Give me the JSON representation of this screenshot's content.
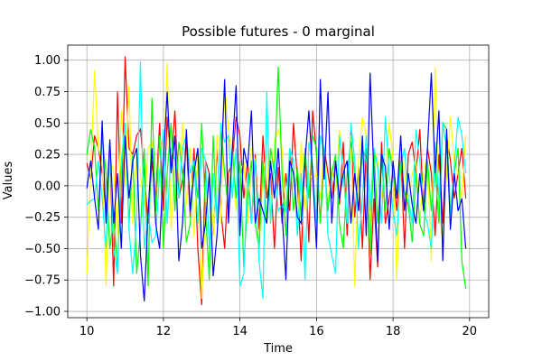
{
  "chart_data": {
    "type": "line",
    "title": "Possible futures - 0 marginal",
    "xlabel": "Time",
    "ylabel": "Values",
    "xlim": [
      9.5,
      20.5
    ],
    "ylim": [
      -1.05,
      1.12
    ],
    "grid": true,
    "x_ticks": [
      10,
      12,
      14,
      16,
      18,
      20
    ],
    "x_tick_labels": [
      "10",
      "12",
      "14",
      "16",
      "18",
      "20"
    ],
    "y_ticks": [
      -1.0,
      -0.75,
      -0.5,
      -0.25,
      0.0,
      0.25,
      0.5,
      0.75,
      1.0
    ],
    "y_tick_labels": [
      "−1.00",
      "−0.75",
      "−0.50",
      "−0.25",
      "0.00",
      "0.25",
      "0.50",
      "0.75",
      "1.00"
    ],
    "x_start": 10,
    "x_step": 0.1,
    "series": [
      {
        "color": "#ff0000",
        "values": [
          0.18,
          0.05,
          0.4,
          0.3,
          0.1,
          -0.2,
          0.35,
          -0.8,
          0.75,
          -0.3,
          1.03,
          0.3,
          0.25,
          0.4,
          0.45,
          0.1,
          -0.3,
          0.2,
          -0.1,
          0.5,
          -0.2,
          0.55,
          0.15,
          0.6,
          -0.1,
          0.05,
          0.35,
          -0.25,
          0.3,
          -0.5,
          -0.95,
          0.2,
          0.1,
          -0.4,
          0.3,
          -0.2,
          -0.5,
          0.1,
          0.2,
          0.55,
          0.4,
          -0.1,
          0.2,
          -0.3,
          0.25,
          -0.35,
          0.4,
          -0.1,
          0.1,
          -0.5,
          0.15,
          -0.3,
          0.1,
          -0.2,
          0.5,
          0.05,
          -0.6,
          0.3,
          -0.45,
          0.6,
          0.25,
          -0.3,
          0.3,
          0.1,
          -0.1,
          0.2,
          -0.15,
          0.35,
          -0.4,
          0.45,
          -0.25,
          0.15,
          -0.5,
          0.3,
          -0.75,
          -0.1,
          -0.65,
          0.35,
          -0.3,
          -0.1,
          0.1,
          -0.2,
          0.3,
          -0.5,
          0.25,
          0.35,
          0.1,
          0.45,
          -0.2,
          0.3,
          0.1,
          -0.4,
          0.25,
          -0.3,
          0.4,
          0.2,
          -0.1,
          0.1,
          0.3,
          -0.1
        ]
      },
      {
        "color": "#ffff00",
        "values": [
          -0.7,
          0.1,
          0.92,
          0.3,
          0.2,
          -0.8,
          0.25,
          0.1,
          -0.4,
          0.6,
          0.0,
          0.8,
          -0.3,
          0.2,
          0.1,
          -0.2,
          0.3,
          0.35,
          -0.25,
          0.4,
          0.1,
          0.98,
          -0.35,
          0.2,
          -0.1,
          0.5,
          -0.15,
          0.3,
          -0.4,
          0.25,
          -0.9,
          -0.2,
          0.1,
          -0.4,
          0.4,
          -0.3,
          0.8,
          0.45,
          0.2,
          -0.2,
          0.1,
          0.2,
          -0.3,
          0.3,
          0.2,
          -0.5,
          0.1,
          0.25,
          -0.3,
          0.35,
          0.45,
          0.3,
          -0.2,
          0.2,
          0.1,
          -0.4,
          0.35,
          -0.2,
          0.1,
          0.05,
          0.1,
          -0.1,
          0.3,
          -0.2,
          0.15,
          -0.05,
          0.45,
          0.1,
          -0.3,
          0.4,
          -0.8,
          0.2,
          0.55,
          0.4,
          -0.3,
          0.3,
          0.2,
          -0.1,
          0.1,
          0.5,
          0.2,
          -0.75,
          0.3,
          0.1,
          -0.2,
          0.1,
          0.2,
          -0.3,
          0.1,
          0.25,
          -0.6,
          0.95,
          -0.2,
          -0.45,
          0.1,
          0.55,
          0.2,
          0.1,
          -0.1,
          0.4
        ]
      },
      {
        "color": "#00ff00",
        "values": [
          0.25,
          0.45,
          0.3,
          -0.2,
          0.4,
          0.1,
          -0.5,
          -0.25,
          -0.65,
          0.1,
          0.5,
          -0.3,
          0.25,
          -0.7,
          -0.35,
          0.3,
          -0.8,
          0.7,
          -0.2,
          0.4,
          -0.5,
          0.1,
          0.5,
          -0.2,
          0.35,
          0.1,
          -0.45,
          -0.3,
          0.2,
          -0.1,
          0.5,
          -0.2,
          -0.75,
          0.4,
          -0.3,
          0.45,
          0.1,
          -0.2,
          0.3,
          -0.1,
          0.2,
          -0.65,
          -0.1,
          0.2,
          -0.3,
          -0.5,
          0.2,
          -0.3,
          0.3,
          0.1,
          0.95,
          0.1,
          -0.4,
          0.3,
          -0.2,
          0.15,
          -0.25,
          0.3,
          -0.1,
          0.4,
          0.3,
          -0.3,
          0.2,
          -0.2,
          0.1,
          0.25,
          -0.3,
          -0.5,
          0.1,
          0.35,
          0.1,
          -0.2,
          0.3,
          0.2,
          -0.55,
          0.3,
          -0.3,
          0.2,
          -0.2,
          0.3,
          0.1,
          -0.1,
          0.2,
          -0.05,
          -0.15,
          -0.45,
          0.1,
          -0.3,
          -0.4,
          0.2,
          -0.2,
          0.15,
          -0.3,
          0.5,
          0.45,
          -0.2,
          0.1,
          0.3,
          -0.6,
          -0.82
        ]
      },
      {
        "color": "#00ffff",
        "values": [
          -0.15,
          -0.12,
          -0.1,
          0.2,
          -0.1,
          -0.5,
          0.35,
          -0.5,
          -0.7,
          0.2,
          0.5,
          -0.35,
          -0.7,
          -0.25,
          0.99,
          -0.5,
          -0.2,
          -0.45,
          -0.4,
          0.1,
          0.45,
          -0.3,
          0.3,
          0.2,
          -0.1,
          0.3,
          0.4,
          0.1,
          0.2,
          -0.3,
          0.3,
          0.2,
          -0.5,
          0.1,
          -0.3,
          0.5,
          0.35,
          0.4,
          -0.1,
          0.3,
          -0.8,
          -0.7,
          0.1,
          -0.3,
          0.2,
          -0.6,
          -0.9,
          0.75,
          -0.3,
          0.2,
          -0.2,
          -0.15,
          -0.2,
          0.3,
          0.2,
          -0.4,
          0.1,
          -0.75,
          0.35,
          0.15,
          -0.3,
          0.4,
          0.3,
          -0.4,
          -0.55,
          -0.7,
          0.4,
          0.1,
          -0.3,
          0.5,
          0.2,
          -0.5,
          -0.1,
          0.4,
          -0.2,
          0.3,
          0.15,
          -0.3,
          0.55,
          0.1,
          -0.2,
          -0.4,
          0.15,
          0.3,
          -0.1,
          -0.3,
          0.45,
          0.2,
          -0.2,
          -0.3,
          -0.5,
          0.35,
          -0.1,
          0.5,
          0.3,
          -0.25,
          0.15,
          0.55,
          0.4,
          0.1
        ]
      },
      {
        "color": "#0000ff",
        "values": [
          -0.02,
          0.2,
          -0.1,
          -0.35,
          0.52,
          -0.3,
          0.37,
          -0.3,
          0.1,
          -0.5,
          0.4,
          -0.1,
          0.2,
          0.3,
          -0.55,
          -0.92,
          -0.2,
          0.3,
          -0.3,
          -0.5,
          0.2,
          0.75,
          0.1,
          0.4,
          -0.6,
          -0.3,
          0.45,
          -0.2,
          0.1,
          0.3,
          -0.5,
          -0.3,
          0.1,
          -0.72,
          -0.4,
          0.1,
          0.85,
          -0.3,
          0.3,
          0.8,
          -0.4,
          0.3,
          0.15,
          0.6,
          -0.3,
          -0.1,
          -0.2,
          -0.3,
          0.2,
          -0.1,
          0.3,
          -0.2,
          -0.75,
          0.2,
          0.1,
          -0.25,
          -0.3,
          0.2,
          0.6,
          0.1,
          -0.5,
          0.85,
          0.05,
          0.75,
          -0.3,
          0.2,
          -0.1,
          0.1,
          0.2,
          -0.3,
          0.1,
          -0.2,
          0.4,
          -0.4,
          0.9,
          0.1,
          -0.6,
          0.25,
          0.15,
          -0.35,
          0.2,
          -0.1,
          0.4,
          -0.2,
          0.1,
          -0.15,
          -0.3,
          0.1,
          -0.2,
          0.3,
          0.9,
          0.1,
          0.6,
          -0.6,
          0.45,
          -0.35,
          0.1,
          -0.2,
          -0.1,
          -0.5
        ]
      }
    ]
  }
}
